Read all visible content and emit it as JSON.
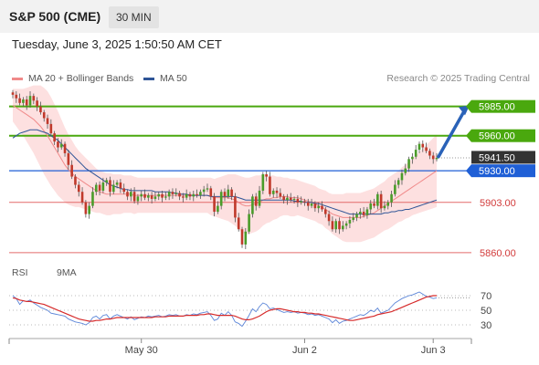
{
  "header": {
    "title": "S&P 500 (CME)",
    "timeframe": "30 MIN",
    "datetime": "Tuesday, June 3, 2025 1:50:50 AM CET"
  },
  "legend": {
    "bollinger": "MA 20 + Bollinger Bands",
    "ma50": "MA 50",
    "credit": "Research © 2025 Trading Central"
  },
  "sub_legend": {
    "rsi": "RSI",
    "ma9": "9MA"
  },
  "colors": {
    "bollinger": "#f08a8a",
    "band_fill": "#fde0e0",
    "ma50": "#2f5597",
    "resistance": "#4aa80e",
    "pivot": "#1f5fd6",
    "support": "#e36a6a",
    "current": "#333333",
    "arrow": "#2a62b8",
    "rsi": "#5b85d8",
    "rsi_ma": "#d62a2a"
  },
  "chart_data": [
    {
      "type": "candlestick",
      "x_ticks": [
        "May 30",
        "Jun 2",
        "Jun 3"
      ],
      "ylim": [
        5856,
        5998
      ],
      "levels": [
        {
          "value": 5985.0,
          "label": "5985.00",
          "kind": "resistance"
        },
        {
          "value": 5960.0,
          "label": "5960.00",
          "kind": "resistance"
        },
        {
          "value": 5941.5,
          "label": "5941.50",
          "kind": "current"
        },
        {
          "value": 5930.0,
          "label": "5930.00",
          "kind": "pivot"
        },
        {
          "value": 5903.0,
          "label": "5903.00",
          "kind": "support"
        },
        {
          "value": 5860.0,
          "label": "5860.00",
          "kind": "support"
        }
      ],
      "arrow": {
        "from": 5942,
        "to": 5986,
        "direction": "up"
      },
      "close": [
        5995,
        5992,
        5988,
        5991,
        5986,
        5994,
        5990,
        5985,
        5980,
        5975,
        5970,
        5962,
        5955,
        5950,
        5953,
        5945,
        5935,
        5925,
        5918,
        5912,
        5903,
        5893,
        5900,
        5912,
        5918,
        5913,
        5920,
        5922,
        5912,
        5918,
        5920,
        5915,
        5912,
        5908,
        5912,
        5904,
        5908,
        5910,
        5907,
        5909,
        5906,
        5908,
        5910,
        5907,
        5908,
        5912,
        5910,
        5911,
        5908,
        5907,
        5910,
        5908,
        5910,
        5909,
        5912,
        5914,
        5915,
        5908,
        5895,
        5900,
        5912,
        5908,
        5914,
        5908,
        5890,
        5880,
        5867,
        5878,
        5893,
        5908,
        5900,
        5913,
        5927,
        5925,
        5910,
        5913,
        5911,
        5908,
        5905,
        5907,
        5905,
        5906,
        5903,
        5904,
        5903,
        5900,
        5902,
        5898,
        5900,
        5897,
        5893,
        5887,
        5880,
        5887,
        5880,
        5883,
        5885,
        5888,
        5890,
        5893,
        5895,
        5892,
        5897,
        5902,
        5900,
        5910,
        5898,
        5900,
        5903,
        5910,
        5918,
        5922,
        5928,
        5932,
        5940,
        5942,
        5948,
        5953,
        5950,
        5947,
        5943,
        5940,
        5941
      ],
      "ma20": [
        5986,
        5984,
        5982,
        5980,
        5978,
        5976,
        5974,
        5971,
        5968,
        5964,
        5960,
        5955,
        5950,
        5945,
        5940,
        5935,
        5931,
        5928,
        5925,
        5923,
        5921,
        5919,
        5917,
        5915,
        5913,
        5912,
        5911,
        5910,
        5910,
        5910,
        5910,
        5910,
        5910,
        5910,
        5910,
        5909,
        5909,
        5909,
        5909,
        5909,
        5909,
        5909,
        5909,
        5909,
        5909,
        5909,
        5909,
        5909,
        5909,
        5909,
        5909,
        5909,
        5909,
        5909,
        5909,
        5909,
        5909,
        5908,
        5907,
        5907,
        5907,
        5907,
        5907,
        5906,
        5905,
        5903,
        5901,
        5900,
        5900,
        5901,
        5902,
        5903,
        5905,
        5906,
        5906,
        5907,
        5907,
        5908,
        5908,
        5908,
        5907,
        5907,
        5907,
        5906,
        5905,
        5904,
        5903,
        5902,
        5900,
        5899,
        5897,
        5895,
        5893,
        5892,
        5891,
        5890,
        5890,
        5890,
        5890,
        5890,
        5890,
        5891,
        5892,
        5893,
        5894,
        5896,
        5898,
        5900,
        5902,
        5904,
        5906,
        5908,
        5910,
        5912,
        5914,
        5916,
        5918,
        5920,
        5922,
        5924,
        5926,
        5928,
        5930
      ],
      "ma50": [
        5958,
        5960,
        5962,
        5963,
        5964,
        5965,
        5965,
        5965,
        5964,
        5963,
        5962,
        5960,
        5958,
        5956,
        5953,
        5950,
        5947,
        5944,
        5941,
        5938,
        5935,
        5932,
        5930,
        5928,
        5926,
        5924,
        5922,
        5920,
        5918,
        5917,
        5916,
        5915,
        5914,
        5914,
        5913,
        5913,
        5913,
        5913,
        5913,
        5913,
        5913,
        5912,
        5912,
        5912,
        5912,
        5912,
        5911,
        5911,
        5910,
        5910,
        5910,
        5909,
        5909,
        5909,
        5909,
        5909,
        5909,
        5908,
        5908,
        5908,
        5908,
        5908,
        5908,
        5908,
        5908,
        5907,
        5906,
        5905,
        5905,
        5905,
        5905,
        5905,
        5905,
        5905,
        5905,
        5905,
        5905,
        5905,
        5905,
        5905,
        5905,
        5904,
        5904,
        5904,
        5903,
        5903,
        5903,
        5902,
        5902,
        5901,
        5900,
        5899,
        5898,
        5897,
        5896,
        5895,
        5894,
        5893,
        5893,
        5893,
        5893,
        5893,
        5893,
        5893,
        5893,
        5893,
        5893,
        5894,
        5894,
        5895,
        5895,
        5896,
        5896,
        5897,
        5897,
        5898,
        5899,
        5900,
        5901,
        5902,
        5903,
        5904,
        5905
      ],
      "band_width": [
        14,
        16,
        18,
        20,
        23,
        26,
        29,
        32,
        35,
        37,
        38,
        38,
        37,
        36,
        34,
        32,
        30,
        28,
        26,
        24,
        23,
        22,
        21,
        20,
        19,
        18,
        18,
        18,
        18,
        17,
        17,
        17,
        16,
        16,
        16,
        16,
        15,
        15,
        15,
        15,
        15,
        15,
        15,
        15,
        15,
        15,
        15,
        15,
        15,
        15,
        15,
        15,
        15,
        15,
        15,
        15,
        15,
        16,
        16,
        17,
        18,
        19,
        20,
        21,
        22,
        23,
        24,
        24,
        24,
        24,
        24,
        23,
        22,
        21,
        20,
        19,
        18,
        17,
        16,
        16,
        16,
        16,
        15,
        15,
        15,
        15,
        15,
        15,
        15,
        15,
        16,
        16,
        17,
        18,
        19,
        20,
        21,
        21,
        21,
        21,
        21,
        21,
        21,
        21,
        21,
        21,
        21,
        21,
        22,
        22,
        22,
        22,
        23,
        23,
        24,
        24,
        25,
        26,
        27,
        28,
        29,
        30,
        31
      ]
    },
    {
      "type": "line",
      "name": "RSI",
      "y_ticks": [
        70,
        50,
        30
      ],
      "ylim": [
        10,
        85
      ],
      "series": [
        {
          "name": "RSI",
          "values": [
            70,
            66,
            58,
            63,
            62,
            64,
            60,
            57,
            54,
            52,
            50,
            46,
            45,
            44,
            43,
            42,
            38,
            36,
            34,
            33,
            32,
            30,
            33,
            40,
            42,
            38,
            43,
            44,
            38,
            42,
            44,
            42,
            40,
            38,
            41,
            37,
            39,
            41,
            40,
            42,
            41,
            42,
            43,
            41,
            42,
            44,
            43,
            44,
            42,
            42,
            44,
            43,
            45,
            44,
            46,
            47,
            48,
            43,
            36,
            38,
            46,
            43,
            48,
            43,
            34,
            32,
            28,
            35,
            43,
            52,
            48,
            55,
            60,
            58,
            52,
            53,
            51,
            49,
            47,
            48,
            47,
            48,
            46,
            47,
            46,
            44,
            45,
            43,
            44,
            42,
            40,
            38,
            33,
            37,
            32,
            35,
            36,
            38,
            40,
            42,
            44,
            43,
            46,
            50,
            48,
            53,
            46,
            48,
            50,
            55,
            60,
            63,
            66,
            68,
            70,
            71,
            73,
            75,
            72,
            69,
            68,
            66,
            67
          ]
        },
        {
          "name": "9MA",
          "values": [
            67,
            66,
            64,
            63,
            62,
            62,
            61,
            60,
            59,
            58,
            56,
            54,
            52,
            50,
            48,
            46,
            44,
            42,
            40,
            38,
            37,
            36,
            35,
            35,
            36,
            36,
            37,
            38,
            38,
            39,
            40,
            40,
            40,
            40,
            40,
            40,
            40,
            40,
            40,
            40,
            40,
            41,
            41,
            41,
            41,
            42,
            42,
            42,
            42,
            42,
            43,
            43,
            43,
            43,
            44,
            44,
            45,
            45,
            44,
            43,
            43,
            43,
            43,
            43,
            42,
            40,
            38,
            37,
            37,
            38,
            40,
            42,
            45,
            48,
            50,
            51,
            52,
            52,
            51,
            50,
            49,
            48,
            48,
            47,
            47,
            46,
            46,
            45,
            45,
            44,
            43,
            42,
            41,
            40,
            39,
            38,
            37,
            36,
            36,
            37,
            38,
            39,
            40,
            41,
            42,
            44,
            45,
            46,
            47,
            48,
            50,
            52,
            54,
            56,
            58,
            60,
            62,
            64,
            66,
            68,
            69,
            70,
            70
          ]
        }
      ]
    }
  ]
}
